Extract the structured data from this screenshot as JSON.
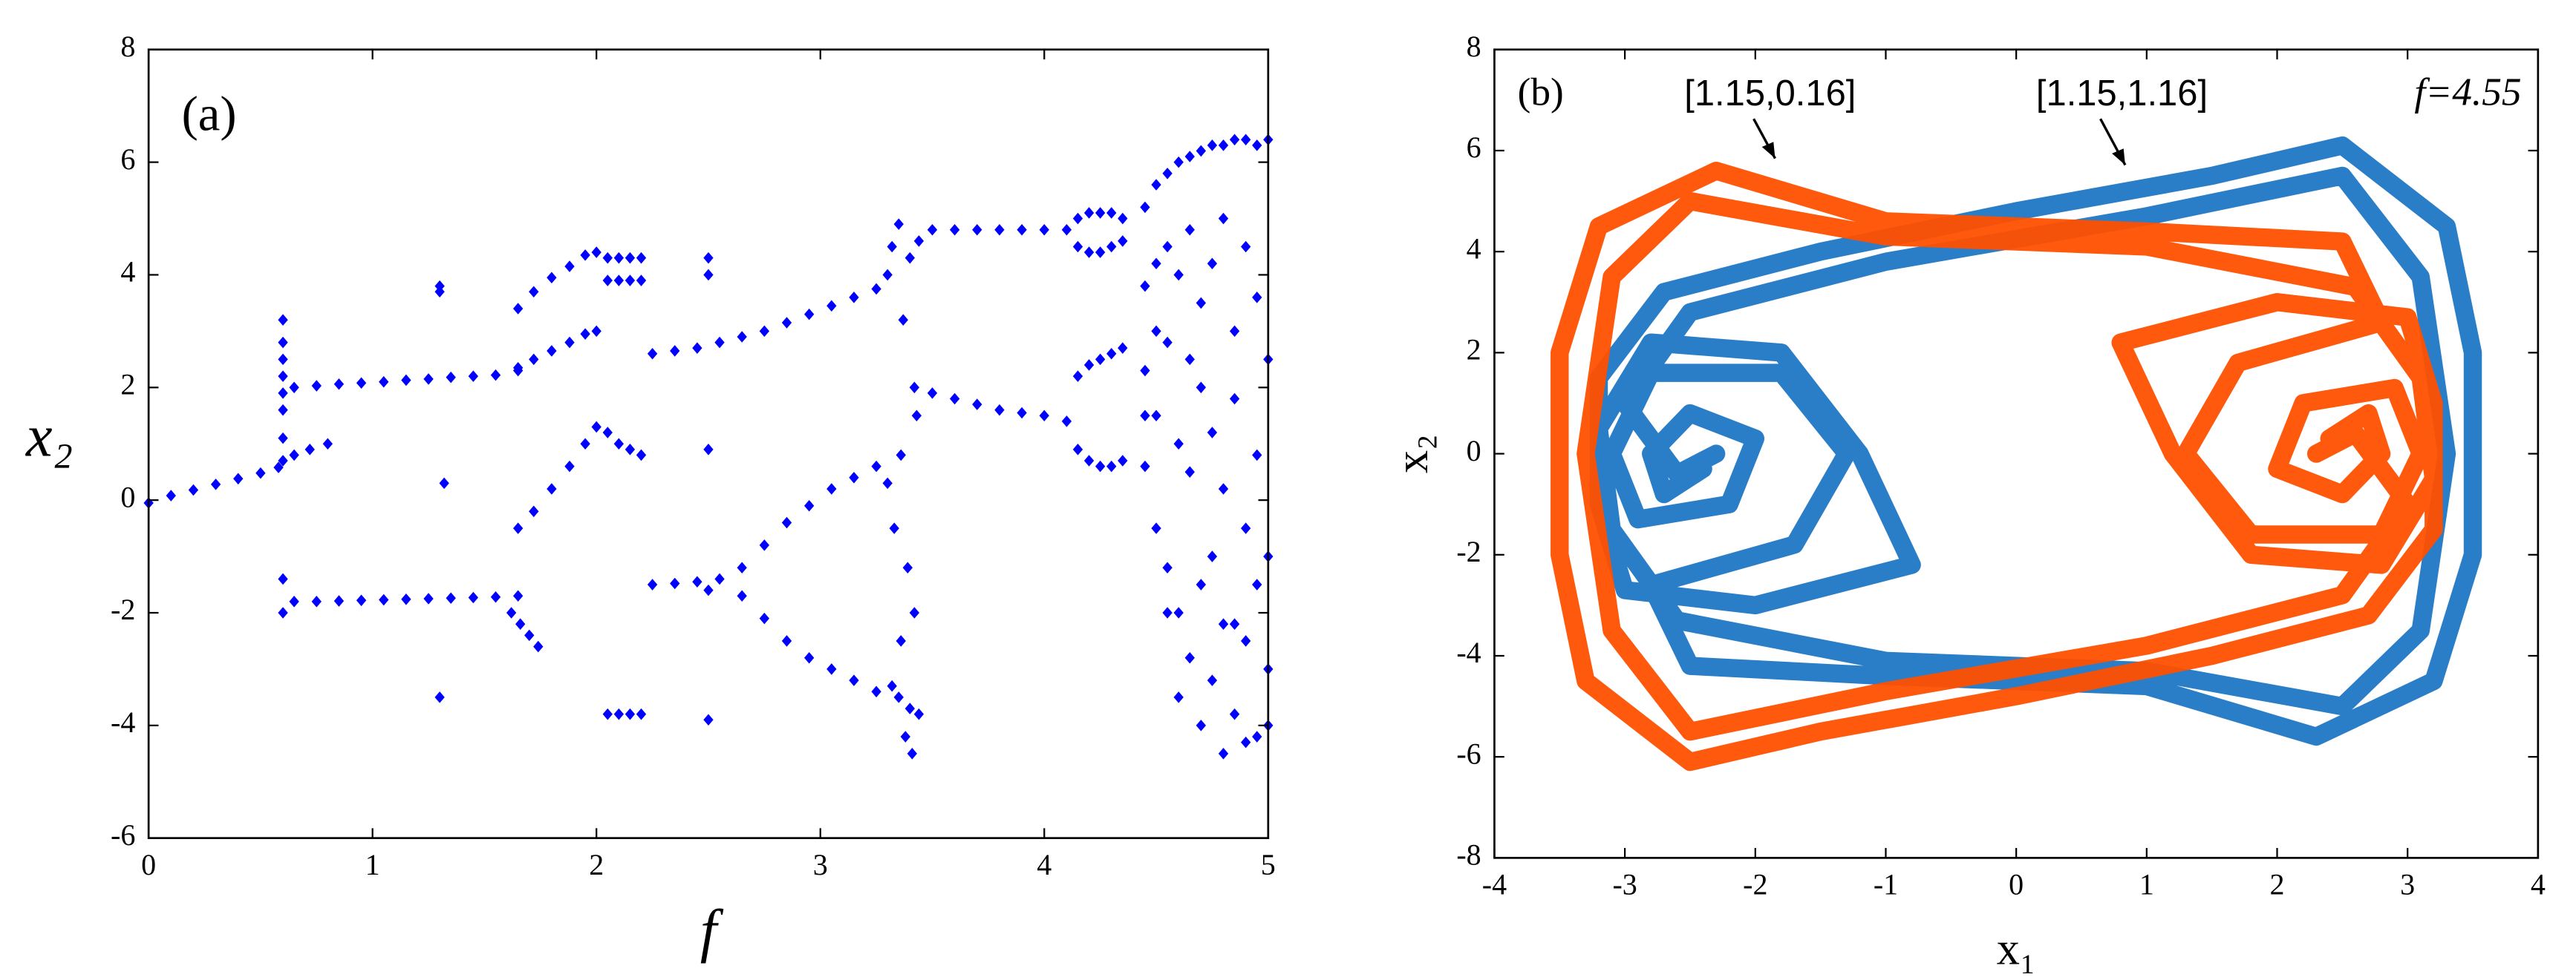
{
  "chart_data": [
    {
      "type": "scatter",
      "label": "(a)",
      "xlabel": "f",
      "ylabel": "x₂",
      "color": "#0000ff",
      "xlim": [
        0,
        5
      ],
      "ylim": [
        -6,
        8
      ],
      "xticks": [
        0,
        1,
        2,
        3,
        4,
        5
      ],
      "yticks": [
        -6,
        -4,
        -2,
        0,
        2,
        4,
        6,
        8
      ],
      "grid": false,
      "series": [
        {
          "x": [
            0,
            0.1,
            0.2,
            0.3,
            0.4,
            0.5,
            0.58
          ],
          "values": [
            -0.05,
            0.08,
            0.18,
            0.28,
            0.38,
            0.48,
            0.58
          ]
        },
        {
          "x": [
            0.6,
            0.6,
            0.6,
            0.6,
            0.6,
            0.6,
            0.6,
            0.6,
            0.6,
            0.6
          ],
          "values": [
            3.2,
            2.8,
            2.5,
            2.2,
            1.9,
            1.6,
            1.1,
            0.7,
            -1.4,
            -2.0
          ]
        },
        {
          "x": [
            0.65,
            0.75,
            0.85,
            0.95,
            1.05,
            1.15,
            1.25,
            1.35,
            1.45,
            1.55,
            1.65
          ],
          "values": [
            2.0,
            2.03,
            2.06,
            2.08,
            2.1,
            2.13,
            2.15,
            2.18,
            2.2,
            2.22,
            2.3
          ]
        },
        {
          "x": [
            0.65,
            0.75,
            0.85,
            0.95,
            1.05,
            1.15,
            1.25,
            1.35,
            1.45,
            1.55,
            1.65
          ],
          "values": [
            -1.8,
            -1.8,
            -1.79,
            -1.78,
            -1.77,
            -1.76,
            -1.75,
            -1.74,
            -1.73,
            -1.72,
            -1.7
          ]
        },
        {
          "x": [
            0.65,
            0.72,
            0.8
          ],
          "values": [
            0.8,
            0.9,
            1.0
          ]
        },
        {
          "x": [
            1.3,
            1.3,
            1.32,
            1.3
          ],
          "values": [
            3.8,
            3.7,
            0.3,
            -3.5
          ]
        },
        {
          "x": [
            1.65,
            1.72,
            1.8,
            1.88,
            1.95,
            2.0
          ],
          "values": [
            3.4,
            3.7,
            3.95,
            4.15,
            4.35,
            4.4
          ]
        },
        {
          "x": [
            1.65,
            1.72,
            1.8,
            1.88,
            1.95,
            2.0
          ],
          "values": [
            2.35,
            2.5,
            2.65,
            2.8,
            2.95,
            3.0
          ]
        },
        {
          "x": [
            1.65,
            1.72,
            1.8,
            1.88,
            1.95,
            2.0
          ],
          "values": [
            -0.5,
            -0.2,
            0.2,
            0.6,
            1.0,
            1.3
          ]
        },
        {
          "x": [
            1.62,
            1.66,
            1.7,
            1.74
          ],
          "values": [
            -2.0,
            -2.2,
            -2.4,
            -2.6
          ]
        },
        {
          "x": [
            2.05,
            2.1,
            2.15,
            2.2,
            2.05,
            2.1,
            2.15,
            2.2,
            2.05,
            2.1,
            2.15,
            2.2,
            2.05,
            2.1,
            2.15,
            2.2
          ],
          "values": [
            4.3,
            4.3,
            4.3,
            4.3,
            3.9,
            3.9,
            3.9,
            3.9,
            1.2,
            1.0,
            0.9,
            0.8,
            -3.8,
            -3.8,
            -3.8,
            -3.8
          ]
        },
        {
          "x": [
            2.25,
            2.35,
            2.45,
            2.55
          ],
          "values": [
            2.6,
            2.65,
            2.7,
            2.8
          ]
        },
        {
          "x": [
            2.25,
            2.35,
            2.45,
            2.55
          ],
          "values": [
            -1.5,
            -1.48,
            -1.45,
            -1.4
          ]
        },
        {
          "x": [
            2.5,
            2.5,
            2.5,
            2.5,
            2.5
          ],
          "values": [
            4.3,
            4.0,
            0.9,
            -1.6,
            -3.9
          ]
        },
        {
          "x": [
            2.65,
            2.75,
            2.85,
            2.95,
            3.05,
            3.15,
            3.25
          ],
          "values": [
            2.9,
            3.0,
            3.15,
            3.3,
            3.45,
            3.6,
            3.75
          ]
        },
        {
          "x": [
            2.65,
            2.75,
            2.85,
            2.95,
            3.05,
            3.15,
            3.25
          ],
          "values": [
            -1.2,
            -0.8,
            -0.4,
            -0.1,
            0.2,
            0.4,
            0.6
          ]
        },
        {
          "x": [
            2.65,
            2.75,
            2.85,
            2.95,
            3.05,
            3.15,
            3.25
          ],
          "values": [
            -1.7,
            -2.1,
            -2.5,
            -2.8,
            -3.0,
            -3.2,
            -3.4
          ]
        },
        {
          "x": [
            3.3,
            3.32,
            3.35,
            3.37,
            3.4,
            3.42,
            3.44,
            3.3,
            3.33,
            3.36,
            3.39,
            3.42,
            3.35,
            3.38,
            3.41,
            3.44,
            3.32,
            3.36,
            3.4,
            3.43
          ],
          "values": [
            4.0,
            4.5,
            4.9,
            3.2,
            4.3,
            2.0,
            4.6,
            0.3,
            -0.5,
            0.8,
            -1.2,
            -2.0,
            -3.5,
            -4.2,
            -4.5,
            -3.8,
            -3.3,
            -2.5,
            -3.7,
            1.5
          ]
        },
        {
          "x": [
            3.5,
            3.6,
            3.7,
            3.8,
            3.9,
            4.0,
            4.1
          ],
          "values": [
            4.8,
            4.8,
            4.8,
            4.8,
            4.8,
            4.8,
            4.8
          ]
        },
        {
          "x": [
            3.5,
            3.6,
            3.7,
            3.8,
            3.9,
            4.0,
            4.1
          ],
          "values": [
            1.9,
            1.8,
            1.7,
            1.6,
            1.55,
            1.5,
            1.4
          ]
        },
        {
          "x": [
            4.15,
            4.2,
            4.25,
            4.3,
            4.35,
            4.15,
            4.2,
            4.25,
            4.3,
            4.35,
            4.15,
            4.2,
            4.25,
            4.3,
            4.35,
            4.15,
            4.2,
            4.25,
            4.3,
            4.35
          ],
          "values": [
            4.5,
            4.4,
            4.4,
            4.5,
            4.6,
            5.0,
            5.1,
            5.1,
            5.1,
            5.0,
            2.2,
            2.4,
            2.5,
            2.6,
            2.7,
            0.9,
            0.7,
            0.6,
            0.6,
            0.7
          ]
        },
        {
          "x": [
            4.45,
            4.5,
            4.55,
            4.6,
            4.65,
            4.7,
            4.75,
            4.8,
            4.85,
            4.9,
            4.95,
            5.0
          ],
          "values": [
            5.2,
            5.6,
            5.8,
            6.0,
            6.1,
            6.2,
            6.3,
            6.3,
            6.4,
            6.4,
            6.3,
            6.4
          ]
        },
        {
          "x": [
            4.45,
            4.5,
            4.55,
            4.6,
            4.65,
            4.7,
            4.75,
            4.8,
            4.85,
            4.9,
            4.95,
            5.0
          ],
          "values": [
            3.8,
            4.2,
            4.5,
            4.0,
            4.8,
            3.5,
            4.2,
            5.0,
            3.0,
            4.5,
            3.6,
            2.5
          ]
        },
        {
          "x": [
            4.45,
            4.5,
            4.55,
            4.6,
            4.65,
            4.7,
            4.75,
            4.8,
            4.85,
            4.9,
            4.95,
            5.0
          ],
          "values": [
            2.3,
            1.5,
            2.8,
            1.0,
            0.5,
            2.0,
            1.2,
            0.2,
            1.8,
            -0.5,
            0.8,
            -1.0
          ]
        },
        {
          "x": [
            4.45,
            4.5,
            4.55,
            4.6,
            4.65,
            4.7,
            4.75,
            4.8,
            4.85,
            4.9,
            4.95,
            5.0
          ],
          "values": [
            0.6,
            -0.5,
            -1.2,
            -2.0,
            -2.8,
            -1.5,
            -3.2,
            -2.2,
            -3.8,
            -2.5,
            -4.2,
            -3.0
          ]
        },
        {
          "x": [
            4.45,
            4.5,
            4.55,
            4.6,
            4.65,
            4.7,
            4.75,
            4.8,
            4.85,
            4.9,
            4.95,
            5.0
          ],
          "values": [
            1.5,
            3.0,
            -2.0,
            -3.5,
            2.5,
            -4.0,
            -1.0,
            -4.5,
            -2.2,
            -4.3,
            -1.5,
            -4.0
          ]
        }
      ]
    },
    {
      "type": "line",
      "label": "(b)",
      "xlabel": "x₁",
      "ylabel": "x₂",
      "annotation": "f=4.55",
      "xlim": [
        -4,
        4
      ],
      "ylim": [
        -8,
        8
      ],
      "xticks": [
        -4,
        -3,
        -2,
        -1,
        0,
        1,
        2,
        3,
        4
      ],
      "yticks": [
        -8,
        -6,
        -4,
        -2,
        0,
        2,
        4,
        6,
        8
      ],
      "grid": false,
      "series": [
        {
          "name": "[1.15,0.16]",
          "color": "#ff5000",
          "x": [
            2.4,
            2.7,
            2.8,
            2.5,
            2.0,
            2.2,
            2.9,
            3.1,
            2.8,
            1.8,
            1.3,
            1.7,
            2.8,
            2.5,
            1.0,
            -1.0,
            -2.3,
            -3.2,
            -3.5,
            -3.5,
            -3.3,
            -2.5,
            -1.5,
            0.0,
            1.5,
            2.7,
            3.2,
            3.2,
            3.0,
            2.0,
            0.8,
            1.2,
            1.8,
            2.8,
            3.2,
            3.1,
            2.6,
            1.0,
            -1.0,
            -2.5,
            -3.1,
            -3.3,
            -3.1,
            -2.5,
            -1.0,
            1.0,
            2.5,
            3.0,
            2.6,
            2.3
          ],
          "values": [
            0.3,
            0.8,
            0.0,
            -0.8,
            -0.3,
            1.0,
            1.3,
            0.0,
            -1.6,
            -1.6,
            0.0,
            1.8,
            2.6,
            4.2,
            4.4,
            4.6,
            5.6,
            4.5,
            2.0,
            -2.0,
            -4.5,
            -6.1,
            -5.5,
            -4.8,
            -4.0,
            -3.2,
            -1.5,
            1.0,
            2.7,
            3.0,
            2.2,
            0.0,
            -2.0,
            -2.2,
            -0.5,
            1.5,
            3.3,
            4.1,
            4.3,
            5.0,
            3.5,
            0.0,
            -3.5,
            -5.5,
            -4.7,
            -3.8,
            -2.8,
            -1.0,
            0.4,
            0.0
          ]
        },
        {
          "name": "[1.15,1.16]",
          "color": "#1f77c4",
          "x": [
            -2.4,
            -2.7,
            -2.8,
            -2.5,
            -2.0,
            -2.2,
            -2.9,
            -3.1,
            -2.8,
            -1.8,
            -1.3,
            -1.7,
            -2.8,
            -2.5,
            -1.0,
            1.0,
            2.3,
            3.2,
            3.5,
            3.5,
            3.3,
            2.5,
            1.5,
            0.0,
            -1.5,
            -2.7,
            -3.2,
            -3.2,
            -3.0,
            -2.0,
            -0.8,
            -1.2,
            -1.8,
            -2.8,
            -3.2,
            -3.1,
            -2.6,
            -1.0,
            1.0,
            2.5,
            3.1,
            3.3,
            3.1,
            2.5,
            1.0,
            -1.0,
            -2.5,
            -3.0,
            -2.6,
            -2.3
          ],
          "values": [
            -0.3,
            -0.8,
            0.0,
            0.8,
            0.3,
            -1.0,
            -1.3,
            0.0,
            1.6,
            1.6,
            0.0,
            -1.8,
            -2.6,
            -4.2,
            -4.4,
            -4.6,
            -5.6,
            -4.5,
            -2.0,
            2.0,
            4.5,
            6.1,
            5.5,
            4.8,
            4.0,
            3.2,
            1.5,
            -1.0,
            -2.7,
            -3.0,
            -2.2,
            0.0,
            2.0,
            2.2,
            0.5,
            -1.5,
            -3.3,
            -4.1,
            -4.3,
            -5.0,
            -3.5,
            0.0,
            3.5,
            5.5,
            4.7,
            3.8,
            2.8,
            1.0,
            -0.4,
            0.0
          ]
        }
      ]
    }
  ]
}
